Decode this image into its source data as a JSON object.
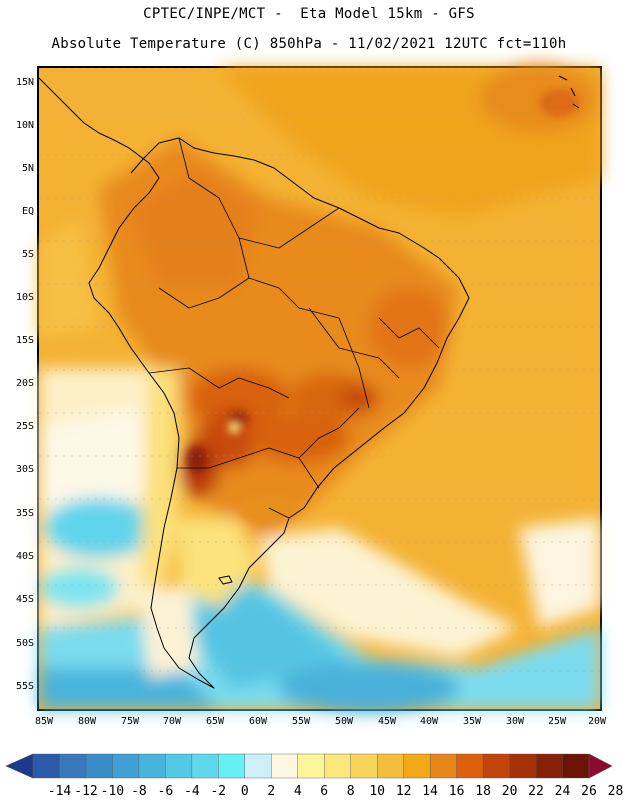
{
  "title": {
    "line1": "CPTEC/INPE/MCT -  Eta Model 15km - GFS",
    "line2": "Absolute Temperature (C) 850hPa - 11/02/2021 12UTC fct=110h"
  },
  "map": {
    "region": "South America",
    "variable": "Absolute Temperature (C)",
    "level": "850hPa",
    "model": "Eta Model 15km - GFS",
    "run": "11/02/2021 12UTC",
    "forecast": "fct=110h",
    "lat_labels": [
      "15N",
      "10N",
      "5N",
      "EQ",
      "5S",
      "10S",
      "15S",
      "20S",
      "25S",
      "30S",
      "35S",
      "40S",
      "45S",
      "50S",
      "55S"
    ],
    "lon_labels": [
      "85W",
      "80W",
      "75W",
      "70W",
      "65W",
      "60W",
      "55W",
      "50W",
      "45W",
      "40W",
      "35W",
      "30W",
      "25W",
      "20W"
    ]
  },
  "colorbar": {
    "labels": [
      "-14",
      "-12",
      "-10",
      "-8",
      "-6",
      "-4",
      "-2",
      "0",
      "2",
      "4",
      "6",
      "8",
      "10",
      "12",
      "14",
      "16",
      "18",
      "20",
      "22",
      "24",
      "26",
      "28"
    ],
    "colors": [
      "#1a3a8c",
      "#2a5aa8",
      "#3a78bc",
      "#3a8cc8",
      "#40a0d4",
      "#48b4dc",
      "#54c8e4",
      "#60d8ec",
      "#66f0f4",
      "#cfeff8",
      "#fdf6e0",
      "#fdf59a",
      "#fbe77c",
      "#f8d45a",
      "#f2be3e",
      "#f0aa18",
      "#e8861a",
      "#dc5f0c",
      "#c0440c",
      "#a43208",
      "#862008",
      "#6c1408",
      "#8c0a30"
    ]
  }
}
